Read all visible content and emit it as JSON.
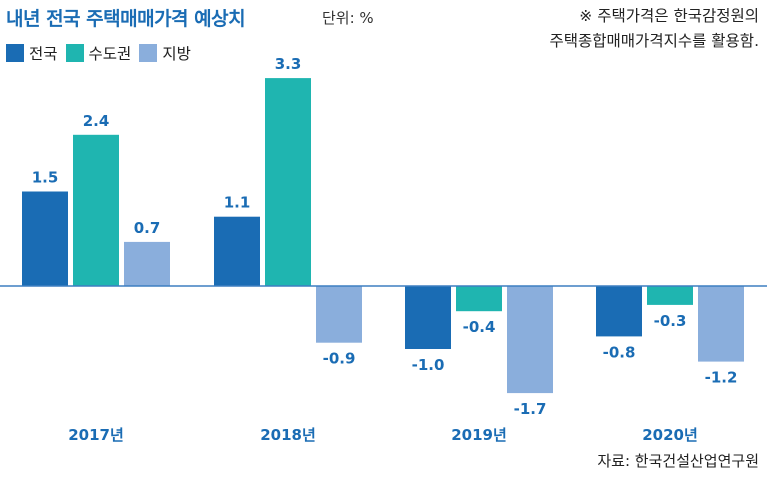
{
  "title": "내년 전국 주택매매가격 예상치",
  "unit_label": "단위: %",
  "note": {
    "line1": "※ 주택가격은 한국감정원의",
    "line2": "주택종합매매가격지수를 활용함."
  },
  "source": "자료: 한국건설산업연구원",
  "colors": {
    "series_1": "#1a6cb4",
    "series_2": "#1fb5b0",
    "series_3": "#8aaedc",
    "title": "#1a6cb4",
    "category_label": "#1a6cb4",
    "value_label": "#1a6cb4",
    "axis": "#3d7fc1"
  },
  "chart_data": {
    "type": "bar",
    "title": "내년 전국 주택매매가격 예상치",
    "ylabel": "",
    "xlabel": "",
    "unit": "%",
    "categories": [
      "2017년",
      "2018년",
      "2019년",
      "2020년"
    ],
    "series": [
      {
        "name": "전국",
        "values": [
          1.5,
          1.1,
          -1.0,
          -0.8
        ]
      },
      {
        "name": "수도권",
        "values": [
          2.4,
          3.3,
          -0.4,
          -0.3
        ]
      },
      {
        "name": "지방",
        "values": [
          0.7,
          -0.9,
          -1.7,
          -1.2
        ]
      }
    ],
    "value_labels": [
      [
        "1.5",
        "1.1",
        "-1.0",
        "-0.8"
      ],
      [
        "2.4",
        "3.3",
        "-0.4",
        "-0.3"
      ],
      [
        "0.7",
        "-0.9",
        "-1.7",
        "-1.2"
      ]
    ],
    "grid": false,
    "legend_position": "top-left"
  }
}
